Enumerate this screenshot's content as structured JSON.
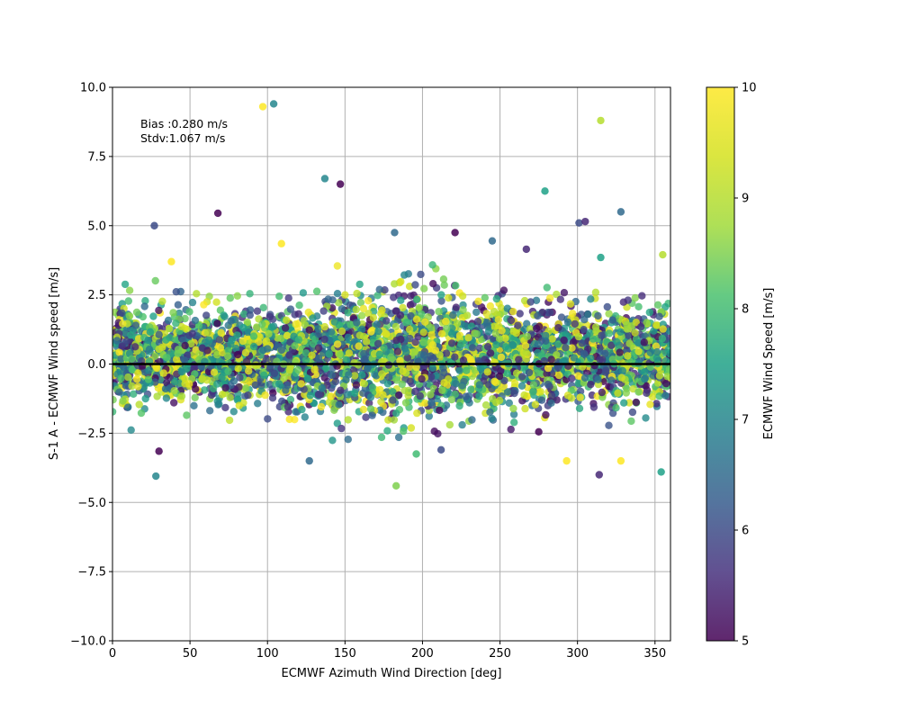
{
  "chart_data": {
    "type": "scatter",
    "title": "",
    "xlabel": "ECMWF Azimuth Wind Direction [deg]",
    "ylabel": "S-1 A - ECMWF Wind speed [m/s]",
    "xlim": [
      0,
      360
    ],
    "ylim": [
      -10,
      10
    ],
    "xticks": [
      0,
      50,
      100,
      150,
      200,
      250,
      300,
      350
    ],
    "xtick_labels": [
      "0",
      "50",
      "100",
      "150",
      "200",
      "250",
      "300",
      "350"
    ],
    "yticks": [
      -10,
      -7.5,
      -5,
      -2.5,
      0,
      2.5,
      5,
      7.5,
      10
    ],
    "ytick_labels": [
      "−10.0",
      "−7.5",
      "−5.0",
      "−2.5",
      "0.0",
      "2.5",
      "5.0",
      "7.5",
      "10.0"
    ],
    "grid": true,
    "reference_line_y": 0,
    "annotations": [
      "Bias :0.280 m/s",
      "Stdv:1.067 m/s"
    ],
    "colorbar": {
      "label": "ECMWF Wind Speed [m/s]",
      "range": [
        5,
        10
      ],
      "ticks": [
        5,
        6,
        7,
        8,
        9,
        10
      ],
      "tick_labels": [
        "5",
        "6",
        "7",
        "8",
        "9",
        "10"
      ],
      "colormap": "viridis"
    },
    "outliers": [
      {
        "x": 97,
        "y": 9.3,
        "c": 10
      },
      {
        "x": 104,
        "y": 9.4,
        "c": 7
      },
      {
        "x": 315,
        "y": 8.8,
        "c": 9
      },
      {
        "x": 137,
        "y": 6.7,
        "c": 7
      },
      {
        "x": 147,
        "y": 6.5,
        "c": 5
      },
      {
        "x": 279,
        "y": 6.25,
        "c": 7.5
      },
      {
        "x": 27,
        "y": 5.0,
        "c": 6
      },
      {
        "x": 68,
        "y": 5.45,
        "c": 5
      },
      {
        "x": 328,
        "y": 5.5,
        "c": 6.5
      },
      {
        "x": 301,
        "y": 5.1,
        "c": 6
      },
      {
        "x": 305,
        "y": 5.15,
        "c": 5.5
      },
      {
        "x": 182,
        "y": 4.75,
        "c": 6.5
      },
      {
        "x": 221,
        "y": 4.75,
        "c": 5
      },
      {
        "x": 109,
        "y": 4.35,
        "c": 10
      },
      {
        "x": 245,
        "y": 4.45,
        "c": 6.5
      },
      {
        "x": 267,
        "y": 4.15,
        "c": 5.5
      },
      {
        "x": 38,
        "y": 3.7,
        "c": 10
      },
      {
        "x": 355,
        "y": 3.95,
        "c": 9
      },
      {
        "x": 315,
        "y": 3.85,
        "c": 7.5
      },
      {
        "x": 127,
        "y": -3.5,
        "c": 6.5
      },
      {
        "x": 28,
        "y": -4.05,
        "c": 7
      },
      {
        "x": 183,
        "y": -4.4,
        "c": 8.5
      },
      {
        "x": 314,
        "y": -4.0,
        "c": 5.5
      },
      {
        "x": 354,
        "y": -3.9,
        "c": 7.5
      },
      {
        "x": 293,
        "y": -3.5,
        "c": 10
      },
      {
        "x": 328,
        "y": -3.5,
        "c": 10
      },
      {
        "x": 30,
        "y": -3.15,
        "c": 5
      },
      {
        "x": 196,
        "y": -3.25,
        "c": 8
      },
      {
        "x": 212,
        "y": -3.1,
        "c": 6
      },
      {
        "x": 275,
        "y": -2.45,
        "c": 5
      }
    ],
    "bulk_distribution": {
      "n_points": 4200,
      "x_range": [
        0,
        360
      ],
      "y_center": 0.28,
      "y_spread_sd": 1.067,
      "y_clip": [
        -2.9,
        3.9
      ],
      "c_range": [
        5,
        10
      ]
    }
  }
}
